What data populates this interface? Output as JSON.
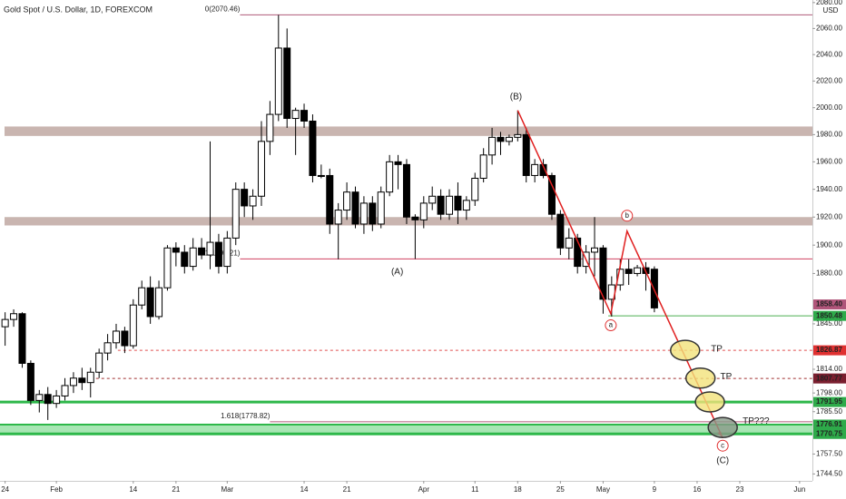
{
  "chart_data": {
    "type": "candlestick",
    "title": "Gold Spot / U.S. Dollar, 1D, FOREXCOM",
    "log_scale": true,
    "ylim": [
      1740,
      2082
    ],
    "xlim": [
      -0.6,
      94.5
    ],
    "up_color": "#ffffff",
    "down_color": "#000000",
    "yticks": [
      {
        "value": 2080,
        "label": "2080.00"
      },
      {
        "value": 2060,
        "label": "2060.00"
      },
      {
        "value": 2040,
        "label": "2040.00"
      },
      {
        "value": 2020,
        "label": "2020.00"
      },
      {
        "value": 2000,
        "label": "2000.00"
      },
      {
        "value": 1980,
        "label": "1980.00"
      },
      {
        "value": 1960,
        "label": "1960.00"
      },
      {
        "value": 1940,
        "label": "1940.00"
      },
      {
        "value": 1920,
        "label": "1920.00"
      },
      {
        "value": 1900,
        "label": "1900.00"
      },
      {
        "value": 1880,
        "label": "1880.00"
      },
      {
        "value": 1845,
        "label": "1845.00"
      },
      {
        "value": 1814,
        "label": "1814.00"
      },
      {
        "value": 1798,
        "label": "1798.00"
      },
      {
        "value": 1785.5,
        "label": "1785.50"
      },
      {
        "value": 1757.5,
        "label": "1757.50"
      },
      {
        "value": 1744.5,
        "label": "1744.50"
      }
    ],
    "currency_label": "USD",
    "xticks": [
      {
        "value": 0,
        "label": "24"
      },
      {
        "value": 6,
        "label": "Feb"
      },
      {
        "value": 15,
        "label": "14"
      },
      {
        "value": 20,
        "label": "21"
      },
      {
        "value": 26,
        "label": "Mar"
      },
      {
        "value": 35,
        "label": "14"
      },
      {
        "value": 40,
        "label": "21"
      },
      {
        "value": 49,
        "label": "Apr"
      },
      {
        "value": 55,
        "label": "11"
      },
      {
        "value": 60,
        "label": "18"
      },
      {
        "value": 65,
        "label": "25"
      },
      {
        "value": 70,
        "label": "May"
      },
      {
        "value": 76,
        "label": "9"
      },
      {
        "value": 81,
        "label": "16"
      },
      {
        "value": 86,
        "label": "23"
      },
      {
        "value": 93,
        "label": "Jun"
      }
    ],
    "open": [
      1843,
      1848,
      1852,
      1818,
      1793,
      1797,
      1791,
      1796,
      1803,
      1808,
      1805,
      1812,
      1825,
      1832,
      1840,
      1830,
      1858,
      1870,
      1850,
      1870,
      1898,
      1895,
      1885,
      1898,
      1893,
      1902,
      1885,
      1905,
      1940,
      1928,
      1935,
      1975,
      1995,
      2045,
      1992,
      1998,
      1990,
      1950,
      1950,
      1915,
      1925,
      1938,
      1915,
      1930,
      1915,
      1938,
      1960,
      1958,
      1920,
      1918,
      1930,
      1935,
      1922,
      1935,
      1925,
      1932,
      1948,
      1965,
      1978,
      1975,
      1978,
      1980,
      1950,
      1958,
      1950,
      1922,
      1898,
      1905,
      1885,
      1895,
      1898,
      1862,
      1872,
      1883,
      1880,
      1884,
      1883
    ],
    "high": [
      1853,
      1855,
      1853,
      1820,
      1800,
      1802,
      1800,
      1808,
      1812,
      1815,
      1815,
      1828,
      1838,
      1845,
      1843,
      1862,
      1875,
      1878,
      1875,
      1900,
      1902,
      1900,
      1905,
      1905,
      1975,
      1908,
      1910,
      1945,
      1945,
      1940,
      1990,
      2005,
      2070.46,
      2060,
      2000,
      2003,
      1995,
      1958,
      1955,
      1930,
      1945,
      1942,
      1935,
      1935,
      1942,
      1965,
      1965,
      1962,
      1922,
      1935,
      1942,
      1940,
      1940,
      1945,
      1935,
      1952,
      1970,
      1985,
      1982,
      1980,
      1998,
      1985,
      1962,
      1962,
      1952,
      1925,
      1912,
      1908,
      1900,
      1920,
      1900,
      1878,
      1890,
      1890,
      1886,
      1888,
      1885
    ],
    "low": [
      1830,
      1843,
      1815,
      1790,
      1785,
      1780,
      1788,
      1793,
      1798,
      1800,
      1795,
      1808,
      1820,
      1828,
      1825,
      1828,
      1855,
      1845,
      1848,
      1868,
      1885,
      1880,
      1882,
      1890,
      1883,
      1880,
      1880,
      1900,
      1920,
      1918,
      1928,
      1965,
      1990,
      1985,
      1965,
      1985,
      1945,
      1948,
      1908,
      1890,
      1918,
      1912,
      1908,
      1910,
      1912,
      1935,
      1940,
      1915,
      1890.21,
      1912,
      1925,
      1918,
      1918,
      1915,
      1918,
      1928,
      1945,
      1958,
      1965,
      1972,
      1975,
      1945,
      1945,
      1948,
      1918,
      1893,
      1890,
      1880,
      1880,
      1878,
      1852,
      1850,
      1868,
      1872,
      1878,
      1868,
      1853
    ],
    "close": [
      1848,
      1852,
      1818,
      1793,
      1797,
      1791,
      1796,
      1803,
      1808,
      1805,
      1812,
      1825,
      1832,
      1840,
      1830,
      1858,
      1870,
      1850,
      1870,
      1898,
      1895,
      1885,
      1898,
      1893,
      1902,
      1885,
      1905,
      1940,
      1928,
      1935,
      1975,
      1995,
      2045,
      1992,
      1998,
      1990,
      1950,
      1950,
      1915,
      1925,
      1938,
      1915,
      1930,
      1915,
      1938,
      1960,
      1958,
      1920,
      1918,
      1930,
      1935,
      1922,
      1935,
      1925,
      1932,
      1948,
      1965,
      1978,
      1975,
      1978,
      1980,
      1950,
      1958,
      1950,
      1922,
      1898,
      1905,
      1885,
      1895,
      1898,
      1862,
      1872,
      1883,
      1880,
      1884,
      1880,
      1856
    ],
    "zones": [
      {
        "low": 1979,
        "high": 1986,
        "color": "#c9b5b0"
      },
      {
        "low": 1914,
        "high": 1920,
        "color": "#c9b5b0"
      }
    ],
    "bands": [
      {
        "low": 1770.75,
        "high": 1776.91,
        "color": "#a8e6b4"
      }
    ],
    "levels": [
      {
        "value": 2070.46,
        "from": 27.5,
        "color": "#b05a7a",
        "style": "solid",
        "width": 1,
        "label": "0(2070.46)"
      },
      {
        "value": 1890.21,
        "from": 27.5,
        "color": "#d04060",
        "style": "solid",
        "width": 1,
        "label": "1(1890.21)"
      },
      {
        "value": 1778.82,
        "from": 31,
        "color": "#b05a7a",
        "style": "solid",
        "width": 1,
        "label": "1.618(1778.82)"
      },
      {
        "value": 1850.48,
        "from": 70.6,
        "color": "#4caf50",
        "style": "solid",
        "width": 1
      },
      {
        "value": 1826.87,
        "from": 13.2,
        "color": "#e05050",
        "style": "dashed",
        "width": 1
      },
      {
        "value": 1807.77,
        "from": 10,
        "color": "#a03030",
        "style": "dashed",
        "width": 1
      },
      {
        "value": 1791.95,
        "from": -0.6,
        "color": "#2eb84a",
        "style": "solid",
        "width": 3
      },
      {
        "value": 1776.91,
        "from": -0.6,
        "color": "#2eb84a",
        "style": "solid",
        "width": 2
      },
      {
        "value": 1770.75,
        "from": -0.6,
        "color": "#2eb84a",
        "style": "solid",
        "width": 3
      }
    ],
    "price_labels": [
      {
        "value": 1858.4,
        "label": "1858.40",
        "color": "#b0557a"
      },
      {
        "value": 1850.48,
        "label": "1850.48",
        "color": "#2eaa4a"
      },
      {
        "value": 1826.87,
        "label": "1826.87",
        "color": "#e03030"
      },
      {
        "value": 1807.77,
        "label": "1807.77",
        "color": "#7a1f2f"
      },
      {
        "value": 1791.95,
        "label": "1791.95",
        "color": "#2eaa4a"
      },
      {
        "value": 1776.91,
        "label": "1776.91",
        "color": "#2eaa4a"
      },
      {
        "value": 1770.75,
        "label": "1770.75",
        "color": "#2eaa4a"
      }
    ],
    "wave": {
      "x": [
        60,
        70.9,
        72.8,
        84
      ],
      "y": [
        1998,
        1852,
        1910,
        1768
      ],
      "color": "#e02020"
    },
    "targets": [
      {
        "x": 79.6,
        "y": 1826.87,
        "color": "#f3e27a"
      },
      {
        "x": 81.4,
        "y": 1808,
        "color": "#f3e27a"
      },
      {
        "x": 82.5,
        "y": 1792,
        "color": "#f3e27a"
      },
      {
        "x": 84,
        "y": 1775,
        "color": "#8a9a8a"
      }
    ],
    "annotations": [
      {
        "text": "(A)",
        "x": 45.9,
        "y": 1881,
        "color": "#000000",
        "circled": false
      },
      {
        "text": "(B)",
        "x": 59.8,
        "y": 2008,
        "color": "#000000",
        "circled": false
      },
      {
        "text": "(C)",
        "x": 84,
        "y": 1753,
        "color": "#000000",
        "circled": false
      },
      {
        "text": "a",
        "x": 70.9,
        "y": 1844,
        "color": "#e03030",
        "circled": true
      },
      {
        "text": "b",
        "x": 72.8,
        "y": 1921,
        "color": "#e03030",
        "circled": true
      },
      {
        "text": "c",
        "x": 84,
        "y": 1763,
        "color": "#e03030",
        "circled": true
      },
      {
        "text": "TP",
        "x": 83.3,
        "y": 1827.5,
        "color": "#e03030",
        "circled": false
      },
      {
        "text": "TP",
        "x": 84.4,
        "y": 1809,
        "color": "#e03030",
        "circled": false
      },
      {
        "text": "TP???",
        "x": 87.9,
        "y": 1779,
        "color": "#333333",
        "circled": false
      }
    ]
  }
}
